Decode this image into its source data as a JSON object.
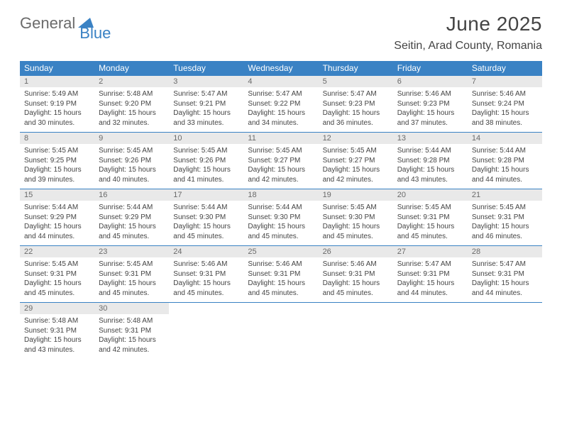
{
  "logo": {
    "text1": "General",
    "text2": "Blue"
  },
  "title": "June 2025",
  "location": "Seitin, Arad County, Romania",
  "colors": {
    "header_bg": "#3a82c4",
    "header_text": "#ffffff",
    "daynum_bg": "#e9e9e9",
    "daynum_text": "#6a6a6a",
    "body_text": "#444444",
    "rule": "#3a82c4",
    "page_bg": "#ffffff",
    "logo_gray": "#6b6b6b",
    "logo_blue": "#3a82c4"
  },
  "typography": {
    "title_fontsize": 28,
    "location_fontsize": 16,
    "header_fontsize": 12,
    "daynum_fontsize": 11,
    "body_fontsize": 10
  },
  "layout": {
    "columns": 7,
    "rows": 5
  },
  "day_headers": [
    "Sunday",
    "Monday",
    "Tuesday",
    "Wednesday",
    "Thursday",
    "Friday",
    "Saturday"
  ],
  "labels": {
    "sunrise": "Sunrise: ",
    "sunset": "Sunset: ",
    "daylight": "Daylight: "
  },
  "days": [
    {
      "n": "1",
      "sunrise": "5:49 AM",
      "sunset": "9:19 PM",
      "daylight": "15 hours and 30 minutes."
    },
    {
      "n": "2",
      "sunrise": "5:48 AM",
      "sunset": "9:20 PM",
      "daylight": "15 hours and 32 minutes."
    },
    {
      "n": "3",
      "sunrise": "5:47 AM",
      "sunset": "9:21 PM",
      "daylight": "15 hours and 33 minutes."
    },
    {
      "n": "4",
      "sunrise": "5:47 AM",
      "sunset": "9:22 PM",
      "daylight": "15 hours and 34 minutes."
    },
    {
      "n": "5",
      "sunrise": "5:47 AM",
      "sunset": "9:23 PM",
      "daylight": "15 hours and 36 minutes."
    },
    {
      "n": "6",
      "sunrise": "5:46 AM",
      "sunset": "9:23 PM",
      "daylight": "15 hours and 37 minutes."
    },
    {
      "n": "7",
      "sunrise": "5:46 AM",
      "sunset": "9:24 PM",
      "daylight": "15 hours and 38 minutes."
    },
    {
      "n": "8",
      "sunrise": "5:45 AM",
      "sunset": "9:25 PM",
      "daylight": "15 hours and 39 minutes."
    },
    {
      "n": "9",
      "sunrise": "5:45 AM",
      "sunset": "9:26 PM",
      "daylight": "15 hours and 40 minutes."
    },
    {
      "n": "10",
      "sunrise": "5:45 AM",
      "sunset": "9:26 PM",
      "daylight": "15 hours and 41 minutes."
    },
    {
      "n": "11",
      "sunrise": "5:45 AM",
      "sunset": "9:27 PM",
      "daylight": "15 hours and 42 minutes."
    },
    {
      "n": "12",
      "sunrise": "5:45 AM",
      "sunset": "9:27 PM",
      "daylight": "15 hours and 42 minutes."
    },
    {
      "n": "13",
      "sunrise": "5:44 AM",
      "sunset": "9:28 PM",
      "daylight": "15 hours and 43 minutes."
    },
    {
      "n": "14",
      "sunrise": "5:44 AM",
      "sunset": "9:28 PM",
      "daylight": "15 hours and 44 minutes."
    },
    {
      "n": "15",
      "sunrise": "5:44 AM",
      "sunset": "9:29 PM",
      "daylight": "15 hours and 44 minutes."
    },
    {
      "n": "16",
      "sunrise": "5:44 AM",
      "sunset": "9:29 PM",
      "daylight": "15 hours and 45 minutes."
    },
    {
      "n": "17",
      "sunrise": "5:44 AM",
      "sunset": "9:30 PM",
      "daylight": "15 hours and 45 minutes."
    },
    {
      "n": "18",
      "sunrise": "5:44 AM",
      "sunset": "9:30 PM",
      "daylight": "15 hours and 45 minutes."
    },
    {
      "n": "19",
      "sunrise": "5:45 AM",
      "sunset": "9:30 PM",
      "daylight": "15 hours and 45 minutes."
    },
    {
      "n": "20",
      "sunrise": "5:45 AM",
      "sunset": "9:31 PM",
      "daylight": "15 hours and 45 minutes."
    },
    {
      "n": "21",
      "sunrise": "5:45 AM",
      "sunset": "9:31 PM",
      "daylight": "15 hours and 46 minutes."
    },
    {
      "n": "22",
      "sunrise": "5:45 AM",
      "sunset": "9:31 PM",
      "daylight": "15 hours and 45 minutes."
    },
    {
      "n": "23",
      "sunrise": "5:45 AM",
      "sunset": "9:31 PM",
      "daylight": "15 hours and 45 minutes."
    },
    {
      "n": "24",
      "sunrise": "5:46 AM",
      "sunset": "9:31 PM",
      "daylight": "15 hours and 45 minutes."
    },
    {
      "n": "25",
      "sunrise": "5:46 AM",
      "sunset": "9:31 PM",
      "daylight": "15 hours and 45 minutes."
    },
    {
      "n": "26",
      "sunrise": "5:46 AM",
      "sunset": "9:31 PM",
      "daylight": "15 hours and 45 minutes."
    },
    {
      "n": "27",
      "sunrise": "5:47 AM",
      "sunset": "9:31 PM",
      "daylight": "15 hours and 44 minutes."
    },
    {
      "n": "28",
      "sunrise": "5:47 AM",
      "sunset": "9:31 PM",
      "daylight": "15 hours and 44 minutes."
    },
    {
      "n": "29",
      "sunrise": "5:48 AM",
      "sunset": "9:31 PM",
      "daylight": "15 hours and 43 minutes."
    },
    {
      "n": "30",
      "sunrise": "5:48 AM",
      "sunset": "9:31 PM",
      "daylight": "15 hours and 42 minutes."
    }
  ]
}
